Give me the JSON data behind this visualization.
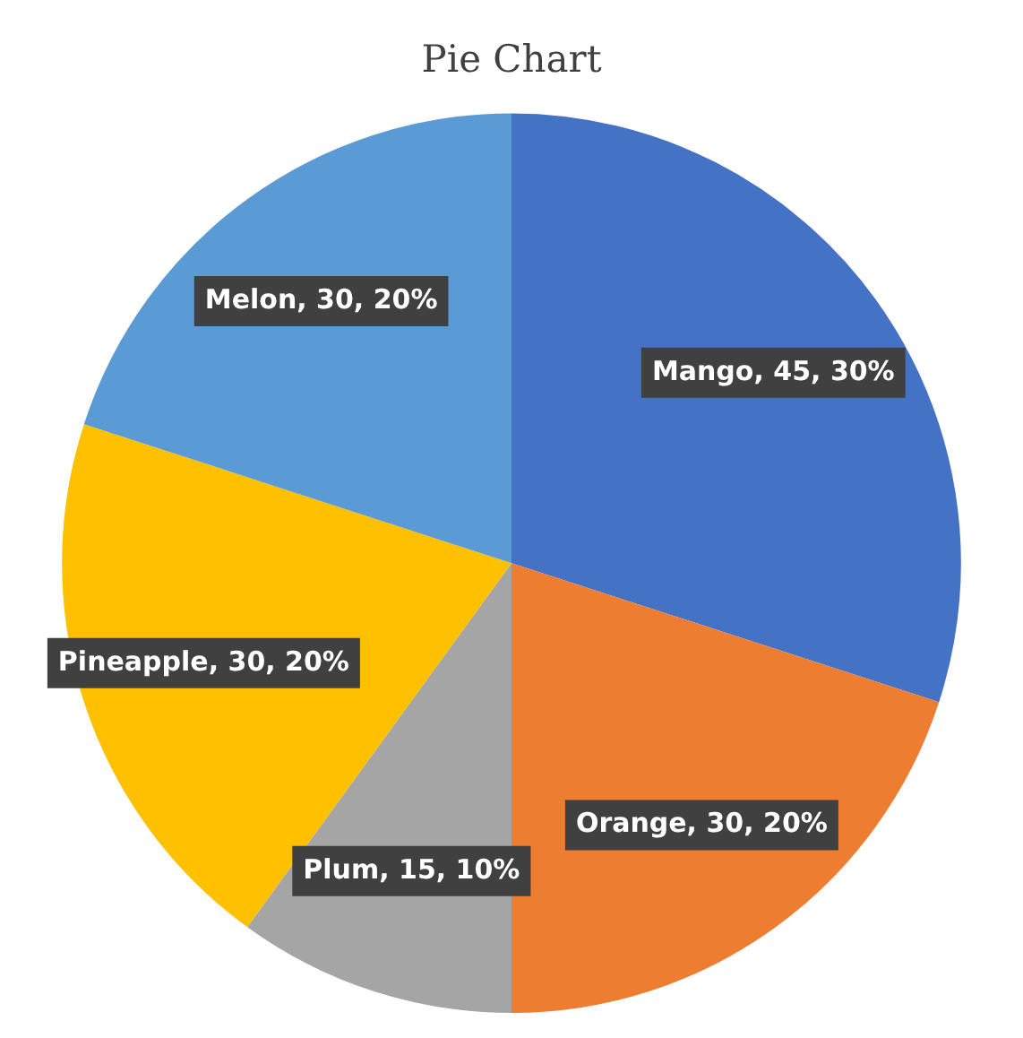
{
  "chart_data": {
    "type": "pie",
    "title": "Pie Chart",
    "categories": [
      "Mango",
      "Orange",
      "Plum",
      "Pineapple",
      "Melon"
    ],
    "values": [
      45,
      30,
      15,
      30,
      30
    ],
    "colors": [
      "#4472c4",
      "#ed7d31",
      "#a5a5a5",
      "#ffc000",
      "#5b9bd5"
    ],
    "value_labels": [
      ", 45, 30%",
      ", 30, 20%",
      ", 15, 10%",
      ", 30, 20%",
      ", 30, 20%"
    ],
    "legend": false
  }
}
